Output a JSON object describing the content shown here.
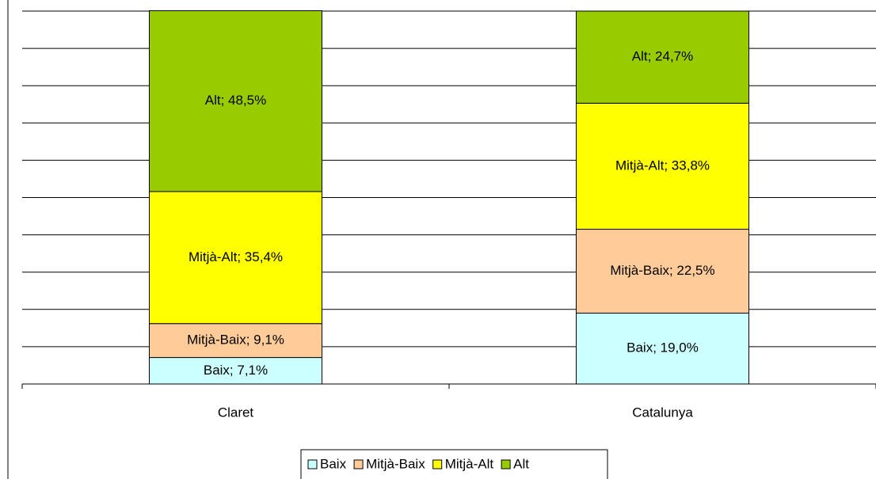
{
  "chart_data": {
    "type": "stacked_bar",
    "categories": [
      "Claret",
      "Catalunya"
    ],
    "series": [
      {
        "name": "Baix",
        "color": "#ccffff",
        "values": [
          7.1,
          19.0
        ],
        "value_labels": [
          "Baix; 7,1%",
          "Baix; 19,0%"
        ]
      },
      {
        "name": "Mitjà-Baix",
        "color": "#ffcc99",
        "values": [
          9.1,
          22.5
        ],
        "value_labels": [
          "Mitjà-Baix; 9,1%",
          "Mitjà-Baix; 22,5%"
        ]
      },
      {
        "name": "Mitjà-Alt",
        "color": "#ffff00",
        "values": [
          35.4,
          33.8
        ],
        "value_labels": [
          "Mitjà-Alt; 35,4%",
          "Mitjà-Alt; 33,8%"
        ]
      },
      {
        "name": "Alt",
        "color": "#99cc00",
        "values": [
          48.5,
          24.7
        ],
        "value_labels": [
          "Alt; 48,5%",
          "Alt; 24,7%"
        ]
      }
    ],
    "ylim": [
      0,
      100
    ],
    "yticks": [
      0,
      10,
      20,
      30,
      40,
      50,
      60,
      70,
      80,
      90,
      100
    ],
    "grid": true,
    "legend": "bottom"
  }
}
